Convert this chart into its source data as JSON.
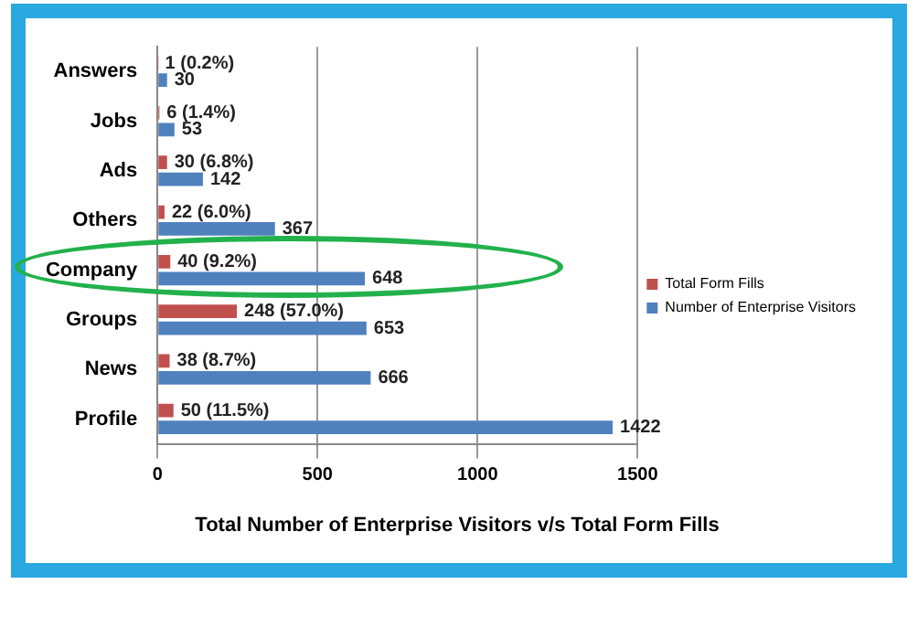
{
  "chart_data": {
    "type": "bar",
    "orientation": "horizontal",
    "title": "Total Number of Enterprise Visitors v/s Total Form Fills",
    "categories": [
      "Answers",
      "Jobs",
      "Ads",
      "Others",
      "Company",
      "Groups",
      "News",
      "Profile"
    ],
    "series": [
      {
        "name": "Total Form Fills",
        "color": "#c0504d",
        "values": [
          1,
          6,
          30,
          22,
          40,
          248,
          38,
          50
        ],
        "value_labels": [
          "1 (0.2%)",
          "6 (1.4%)",
          "30 (6.8%)",
          "22 (6.0%)",
          "40 (9.2%)",
          "248 (57.0%)",
          "38 (8.7%)",
          "50 (11.5%)"
        ]
      },
      {
        "name": "Number of Enterprise Visitors",
        "color": "#4f81bd",
        "values": [
          30,
          53,
          142,
          367,
          648,
          653,
          666,
          1422
        ],
        "value_labels": [
          "30",
          "53",
          "142",
          "367",
          "648",
          "653",
          "666",
          "1422"
        ]
      }
    ],
    "xlim": [
      0,
      1500
    ],
    "xticks": [
      0,
      500,
      1000,
      1500
    ],
    "grid": "x",
    "legend": "right"
  }
}
